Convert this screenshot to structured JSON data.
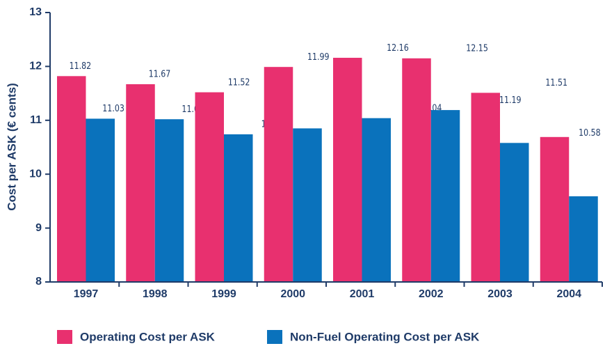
{
  "chart_data": {
    "type": "bar",
    "y_label": "Cost per ASK (€ cents)",
    "categories": [
      "1997",
      "1998",
      "1999",
      "2000",
      "2001",
      "2002",
      "2003",
      "2004"
    ],
    "series": [
      {
        "name": "Operating Cost per ASK",
        "color": "#e8306f",
        "values": [
          11.82,
          11.67,
          11.52,
          11.99,
          12.16,
          12.15,
          11.51,
          10.69
        ]
      },
      {
        "name": "Non-Fuel Operating Cost per ASK",
        "color": "#0a72bc",
        "values": [
          11.03,
          11.02,
          10.74,
          10.85,
          11.04,
          11.19,
          10.58,
          9.59
        ]
      }
    ],
    "ylim": [
      8,
      13
    ],
    "yticks": [
      8,
      9,
      10,
      11,
      12,
      13
    ],
    "legend": "bottom"
  }
}
